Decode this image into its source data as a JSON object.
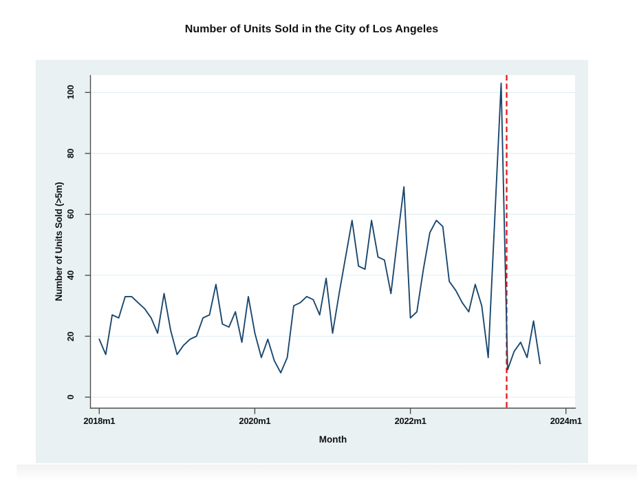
{
  "page": {
    "title": "Number of Units Sold in the City of Los Angeles"
  },
  "chart_data": {
    "type": "line",
    "title": "Number of Units Sold in the City of Los Angeles",
    "xlabel": "Month",
    "ylabel": "Number of Units Sold (>5m)",
    "x_tick_labels": [
      "2018m1",
      "2020m1",
      "2022m1",
      "2024m1"
    ],
    "x_tick_month_index": [
      0,
      24,
      48,
      72
    ],
    "y_ticks": [
      "0",
      "20",
      "40",
      "60",
      "80",
      "100"
    ],
    "y_tick_values": [
      0,
      20,
      40,
      60,
      80,
      100
    ],
    "ylim": [
      0,
      105
    ],
    "xlim_months": [
      "2018m1",
      "2024m1"
    ],
    "grid": "horizontal",
    "legend_position": "none",
    "months": [
      "2018m1",
      "2018m2",
      "2018m3",
      "2018m4",
      "2018m5",
      "2018m6",
      "2018m7",
      "2018m8",
      "2018m9",
      "2018m10",
      "2018m11",
      "2018m12",
      "2019m1",
      "2019m2",
      "2019m3",
      "2019m4",
      "2019m5",
      "2019m6",
      "2019m7",
      "2019m8",
      "2019m9",
      "2019m10",
      "2019m11",
      "2019m12",
      "2020m1",
      "2020m2",
      "2020m3",
      "2020m4",
      "2020m5",
      "2020m6",
      "2020m7",
      "2020m8",
      "2020m9",
      "2020m10",
      "2020m11",
      "2020m12",
      "2021m1",
      "2021m2",
      "2021m3",
      "2021m4",
      "2021m5",
      "2021m6",
      "2021m7",
      "2021m8",
      "2021m9",
      "2021m10",
      "2021m11",
      "2021m12",
      "2022m1",
      "2022m2",
      "2022m3",
      "2022m4",
      "2022m5",
      "2022m6",
      "2022m7",
      "2022m8",
      "2022m9",
      "2022m10",
      "2022m11",
      "2022m12",
      "2023m1",
      "2023m2",
      "2023m3",
      "2023m4",
      "2023m5",
      "2023m6",
      "2023m7",
      "2023m8",
      "2023m9"
    ],
    "series": [
      {
        "name": "Number of Units Sold (>5m)",
        "color": "#1a476f",
        "values": [
          19,
          14,
          27,
          26,
          33,
          33,
          31,
          29,
          26,
          21,
          34,
          22,
          14,
          17,
          19,
          20,
          26,
          27,
          37,
          24,
          23,
          28,
          18,
          33,
          21,
          13,
          19,
          12,
          8,
          13,
          30,
          31,
          33,
          32,
          27,
          39,
          21,
          34,
          46,
          58,
          43,
          42,
          58,
          46,
          45,
          34,
          52,
          69,
          26,
          28,
          42,
          54,
          58,
          56,
          38,
          35,
          31,
          28,
          37,
          30,
          13,
          58,
          103,
          9,
          15,
          18,
          13,
          25,
          11
        ]
      }
    ],
    "vline": {
      "month": "2023m4",
      "month_index": 62.85,
      "color": "#e31a1c",
      "style": "dashed"
    }
  }
}
